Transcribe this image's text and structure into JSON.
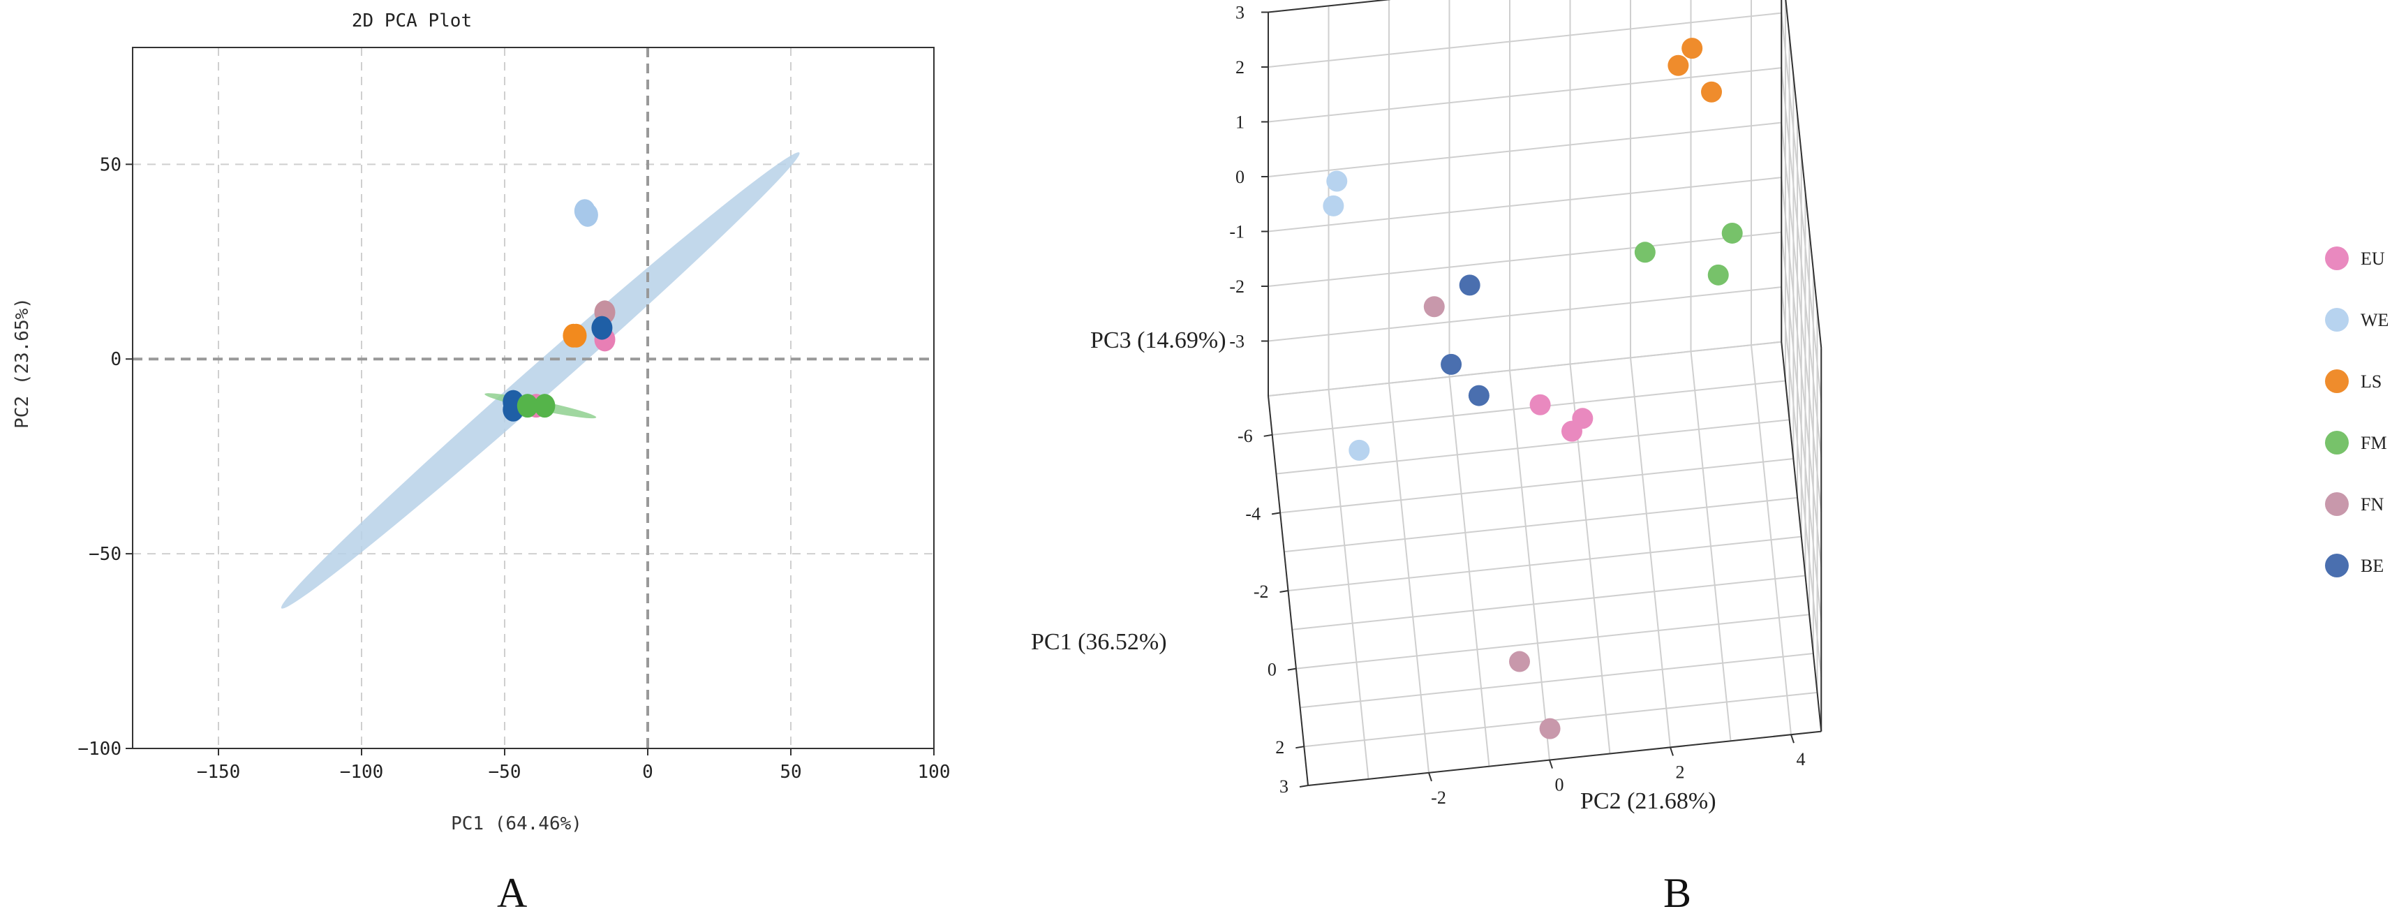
{
  "panel_labels": {
    "a": "A",
    "b": "B"
  },
  "chart_data": [
    {
      "type": "scatter",
      "title": "2D PCA Plot",
      "xlabel": "PC1 (64.46%)",
      "ylabel": "PC2 (23.65%)",
      "xlim": [
        -180,
        100
      ],
      "ylim": [
        -100,
        80
      ],
      "xticks": [
        -150,
        -100,
        -50,
        0,
        50,
        100
      ],
      "yticks": [
        -100,
        -50,
        0,
        50
      ],
      "xtick_labels": [
        "−150",
        "−100",
        "−50",
        "0",
        "50",
        "100"
      ],
      "ytick_labels": [
        "−100",
        "−50",
        "0",
        "50"
      ],
      "grid": true,
      "confidence_ellipses": [
        {
          "group": "WE",
          "color": "#b7d1e8",
          "from": [
            -128,
            -64
          ],
          "to": [
            53,
            53
          ],
          "half_width": 4
        },
        {
          "group": "FM",
          "color": "#8fd08f",
          "from": [
            -57,
            -9
          ],
          "to": [
            -18,
            -15
          ],
          "half_width": 1.2
        }
      ],
      "series": [
        {
          "name": "WE",
          "color": "#a7c8ea",
          "points": [
            [
              -22,
              38
            ],
            [
              -21,
              37
            ]
          ]
        },
        {
          "name": "LS",
          "color": "#f28a1e",
          "points": [
            [
              -26,
              6
            ],
            [
              -25,
              6
            ]
          ]
        },
        {
          "name": "FN",
          "color": "#c5909f",
          "points": [
            [
              -15,
              12
            ]
          ]
        },
        {
          "name": "EU",
          "color": "#e87fb5",
          "points": [
            [
              -15,
              5
            ],
            [
              -39,
              -12
            ]
          ]
        },
        {
          "name": "BE",
          "color": "#1f5fa6",
          "points": [
            [
              -16,
              8
            ],
            [
              -47,
              -11
            ],
            [
              -47,
              -13
            ]
          ]
        },
        {
          "name": "FM",
          "color": "#55b44a",
          "points": [
            [
              -42,
              -12
            ],
            [
              -36,
              -12
            ]
          ]
        }
      ]
    },
    {
      "type": "scatter",
      "projection": "3d",
      "xlabel": "PC2 (21.68%)",
      "ylabel": "PC1 (36.52%)",
      "zlabel": "PC3 (14.69%)",
      "xlim": [
        -4,
        4.5
      ],
      "ylim": [
        -7,
        3
      ],
      "zlim": [
        -4,
        3
      ],
      "xticks": [
        -2,
        0,
        2,
        4
      ],
      "yticks": [
        -6,
        -4,
        -2,
        0,
        2,
        3
      ],
      "zticks": [
        -3,
        -2,
        -1,
        0,
        1,
        2,
        3
      ],
      "xtick_labels": [
        "-2",
        "0",
        "2",
        "4"
      ],
      "ytick_labels": [
        "-6",
        "-4",
        "-2",
        "0",
        "2",
        "3"
      ],
      "ztick_labels": [
        "-3",
        "-2",
        "-1",
        "0",
        "1",
        "2",
        "3"
      ],
      "legend": [
        "EU",
        "WE",
        "LS",
        "FM",
        "FN",
        "BE"
      ],
      "legend_position": "right",
      "series": [
        {
          "name": "EU",
          "color": "#e989bf",
          "points": [
            [
              0.32,
              -4.21,
              -2.68
            ],
            [
              0.82,
              -3.83,
              -2.95
            ],
            [
              1.06,
              -4.78,
              -3.42
            ]
          ]
        },
        {
          "name": "WE",
          "color": "#b7d3ef",
          "points": [
            [
              -3.09,
              -3.57,
              2.25
            ],
            [
              -3.16,
              -3.37,
              1.95
            ],
            [
              -2.93,
              -0.38,
              -0.41
            ]
          ]
        },
        {
          "name": "LS",
          "color": "#ef8c2c",
          "points": [
            [
              2.72,
              -5.93,
              2.01
            ],
            [
              3.27,
              -5.92,
              1.47
            ],
            [
              2.98,
              -6.4,
              1.96
            ]
          ]
        },
        {
          "name": "FM",
          "color": "#77c26a",
          "points": [
            [
              2.08,
              -4.56,
              -0.35
            ],
            [
              3.61,
              -5.87,
              -1.11
            ],
            [
              3.35,
              -5.43,
              -1.53
            ]
          ]
        },
        {
          "name": "FN",
          "color": "#c898ab",
          "points": [
            [
              -1.52,
              -2.92,
              0.24
            ],
            [
              -0.36,
              0.92,
              -3.64
            ],
            [
              0.06,
              2.19,
              -4.01
            ]
          ]
        },
        {
          "name": "BE",
          "color": "#4a6faf",
          "points": [
            [
              -0.9,
              -3.4,
              0.22
            ],
            [
              -1.28,
              -2.3,
              -0.4
            ],
            [
              -0.81,
              -2.45,
              -1.13
            ]
          ]
        }
      ]
    }
  ]
}
